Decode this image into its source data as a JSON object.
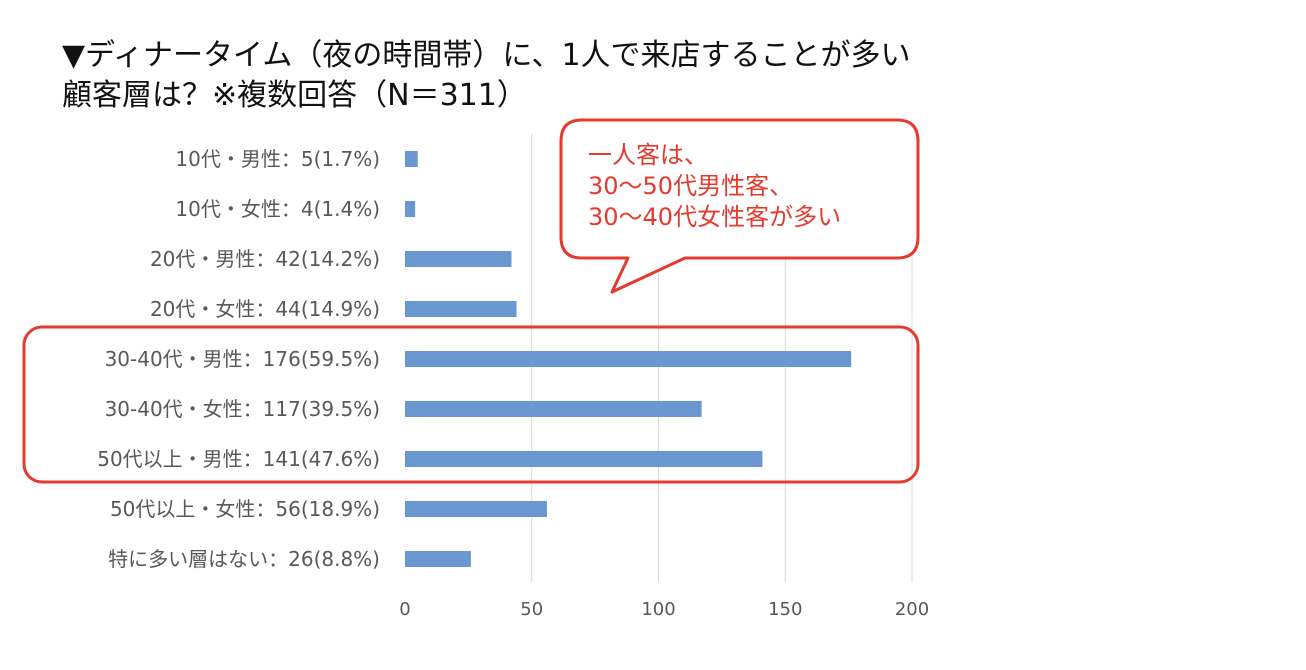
{
  "title": {
    "line1": "▼ディナータイム（夜の時間帯）に、1人で来店することが多い",
    "line2": "顧客層は？※複数回答（N＝311）"
  },
  "callout": {
    "text": "一人客は、\n30〜50代男性客、\n30〜40代女性客が多い"
  },
  "colors": {
    "bar": "#6a97cf",
    "highlight": "#e53a2f",
    "grid": "#d9d9d9",
    "label": "#595959"
  },
  "chart_data": {
    "type": "bar",
    "orientation": "horizontal",
    "categories": [
      "10代・男性：5(1.7%)",
      "10代・女性：4(1.4%)",
      "20代・男性：42(14.2%)",
      "20代・女性：44(14.9%)",
      "30-40代・男性：176(59.5%)",
      "30-40代・女性：117(39.5%)",
      "50代以上・男性：141(47.6%)",
      "50代以上・女性：56(18.9%)",
      "特に多い層はない：26(8.8%)"
    ],
    "values": [
      5,
      4,
      42,
      44,
      176,
      117,
      141,
      56,
      26
    ],
    "xlim": [
      0,
      200
    ],
    "xticks": [
      "0",
      "50",
      "100",
      "150",
      "200"
    ],
    "grid": true,
    "highlighted_categories": [
      4,
      5,
      6
    ]
  }
}
